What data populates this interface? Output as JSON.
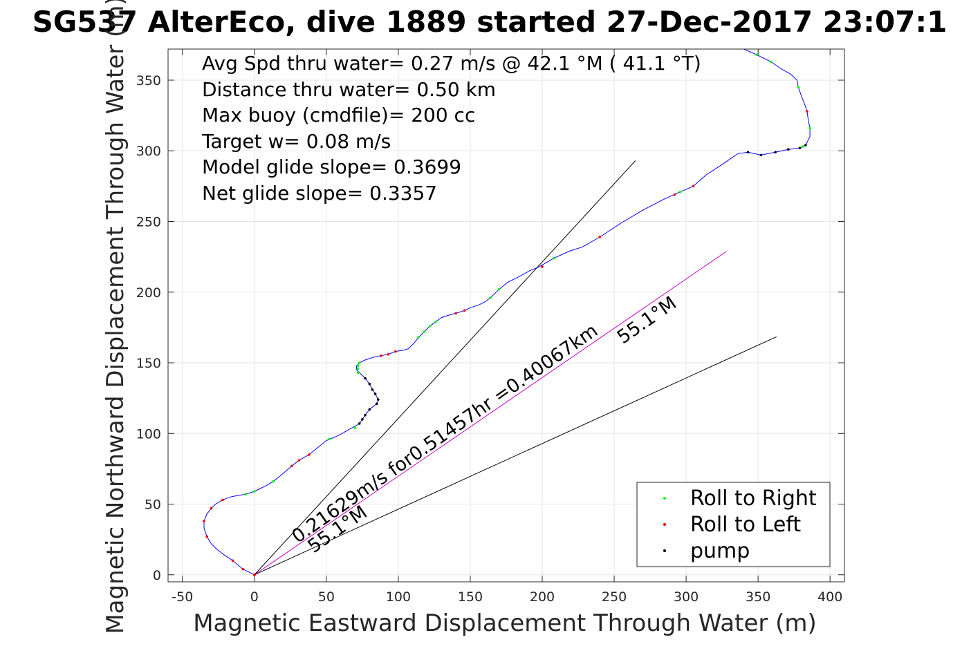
{
  "chart_data": {
    "type": "line",
    "title": "SG537 AlterEco, dive 1889 started 27-Dec-2017 23:07:1",
    "xlabel": "Magnetic Eastward Displacement Through Water (m)",
    "ylabel": "Magnetic Northward Displacement Through Water (m)",
    "xlim": [
      -60,
      410
    ],
    "ylim": [
      -5,
      372
    ],
    "xticks": [
      -50,
      0,
      50,
      100,
      150,
      200,
      250,
      300,
      350,
      400
    ],
    "yticks": [
      0,
      50,
      100,
      150,
      200,
      250,
      300,
      350
    ],
    "grid": true,
    "legend_position": "bottom-right",
    "annotations": [
      "Avg Spd thru water=  0.27 m/s @  42.1 °M ( 41.1 °T)",
      "Distance thru water=  0.50 km",
      "Max buoy (cmdfile)= 200 cc",
      "Target w= 0.08 m/s",
      "Model glide slope= 0.3699",
      "Net glide slope= 0.3357"
    ],
    "track": {
      "color": "#0000ff",
      "points": [
        [
          0,
          0
        ],
        [
          -8,
          4
        ],
        [
          -15,
          10
        ],
        [
          -21,
          14
        ],
        [
          -26,
          18
        ],
        [
          -30,
          22
        ],
        [
          -33,
          27
        ],
        [
          -35,
          33
        ],
        [
          -35,
          38
        ],
        [
          -33,
          43
        ],
        [
          -30,
          47
        ],
        [
          -27,
          50
        ],
        [
          -22,
          53
        ],
        [
          -17,
          55
        ],
        [
          -12,
          56
        ],
        [
          -6,
          57
        ],
        [
          0,
          59
        ],
        [
          4,
          61
        ],
        [
          8,
          63
        ],
        [
          13,
          66
        ],
        [
          18,
          70
        ],
        [
          26,
          77
        ],
        [
          31,
          81
        ],
        [
          38,
          85
        ],
        [
          44,
          90
        ],
        [
          50,
          95
        ],
        [
          57,
          98
        ],
        [
          61,
          100
        ],
        [
          66,
          103
        ],
        [
          70,
          105
        ],
        [
          73,
          107
        ],
        [
          75,
          110
        ],
        [
          77,
          113
        ],
        [
          80,
          117
        ],
        [
          85,
          121
        ],
        [
          86,
          124
        ],
        [
          84,
          128
        ],
        [
          82,
          131
        ],
        [
          80,
          135
        ],
        [
          77,
          139
        ],
        [
          74,
          142
        ],
        [
          71,
          145
        ],
        [
          71,
          148
        ],
        [
          73,
          150
        ],
        [
          77,
          152
        ],
        [
          83,
          154
        ],
        [
          88,
          155
        ],
        [
          93,
          156
        ],
        [
          98,
          158
        ],
        [
          104,
          159
        ],
        [
          107,
          160
        ],
        [
          111,
          164
        ],
        [
          114,
          168
        ],
        [
          118,
          172
        ],
        [
          122,
          176
        ],
        [
          126,
          179
        ],
        [
          130,
          182
        ],
        [
          136,
          184
        ],
        [
          140,
          185
        ],
        [
          146,
          187
        ],
        [
          150,
          189
        ],
        [
          156,
          191
        ],
        [
          160,
          193
        ],
        [
          164,
          196
        ],
        [
          170,
          202
        ],
        [
          176,
          207
        ],
        [
          184,
          211
        ],
        [
          191,
          215
        ],
        [
          198,
          218
        ],
        [
          208,
          224
        ],
        [
          219,
          229
        ],
        [
          228,
          232
        ],
        [
          240,
          239
        ],
        [
          255,
          249
        ],
        [
          270,
          258
        ],
        [
          285,
          266
        ],
        [
          296,
          271
        ],
        [
          305,
          275
        ],
        [
          314,
          283
        ],
        [
          326,
          291
        ],
        [
          336,
          298
        ],
        [
          343,
          299
        ],
        [
          352,
          297
        ],
        [
          362,
          299
        ],
        [
          371,
          301
        ],
        [
          379,
          302
        ],
        [
          383,
          304
        ],
        [
          386,
          310
        ],
        [
          386,
          316
        ],
        [
          385,
          321
        ],
        [
          384,
          328
        ],
        [
          382,
          334
        ],
        [
          380,
          339
        ],
        [
          378,
          345
        ],
        [
          377,
          350
        ],
        [
          373,
          354
        ],
        [
          366,
          358
        ],
        [
          359,
          363
        ],
        [
          349,
          368
        ],
        [
          340,
          372
        ]
      ]
    },
    "markers": {
      "roll_to_right": {
        "color": "#00ff00",
        "points": [
          [
            -6,
            57
          ],
          [
            0,
            59
          ],
          [
            13,
            66
          ],
          [
            52,
            96
          ],
          [
            70,
            104
          ],
          [
            72,
            143
          ],
          [
            72,
            146
          ],
          [
            72,
            148
          ],
          [
            73,
            150
          ],
          [
            114,
            168
          ],
          [
            118,
            172
          ],
          [
            122,
            176
          ],
          [
            126,
            179
          ],
          [
            164,
            196
          ],
          [
            170,
            202
          ],
          [
            208,
            224
          ],
          [
            296,
            271
          ],
          [
            378,
            345
          ],
          [
            386,
            316
          ],
          [
            381,
            303
          ],
          [
            359,
            363
          ],
          [
            349,
            368
          ]
        ]
      },
      "roll_to_left": {
        "color": "#ff0000",
        "points": [
          [
            -8,
            4
          ],
          [
            -15,
            10
          ],
          [
            -33,
            27
          ],
          [
            -35,
            38
          ],
          [
            -30,
            47
          ],
          [
            -22,
            53
          ],
          [
            26,
            77
          ],
          [
            31,
            81
          ],
          [
            38,
            85
          ],
          [
            88,
            155
          ],
          [
            93,
            156
          ],
          [
            98,
            158
          ],
          [
            140,
            185
          ],
          [
            146,
            187
          ],
          [
            200,
            218
          ],
          [
            240,
            239
          ],
          [
            292,
            269
          ],
          [
            305,
            275
          ],
          [
            384,
            328
          ]
        ]
      },
      "pump": {
        "color": "#000000",
        "points": [
          [
            73,
            107
          ],
          [
            75,
            110
          ],
          [
            77,
            113
          ],
          [
            80,
            117
          ],
          [
            85,
            121
          ],
          [
            86,
            124
          ],
          [
            84,
            128
          ],
          [
            82,
            131
          ],
          [
            80,
            135
          ],
          [
            77,
            139
          ],
          [
            343,
            299
          ],
          [
            352,
            297
          ],
          [
            362,
            299
          ],
          [
            371,
            301
          ],
          [
            379,
            302
          ],
          [
            383,
            304
          ]
        ]
      }
    },
    "heading_lines": [
      {
        "angle_deg": 42.1,
        "length": 395,
        "label": "",
        "color": "#000000"
      },
      {
        "angle_deg": 55.1,
        "length": 400,
        "label": "55.1°M",
        "color": "#c800c8"
      },
      {
        "angle_deg": 65.1,
        "length": 400,
        "label": "",
        "color": "#000000"
      }
    ],
    "rotated_labels": [
      {
        "text": "0.21629m/s for0.51457hr =0.40067km",
        "anchor": [
          30,
          22
        ],
        "angle_deg": 34.9
      },
      {
        "text": "55.1°M",
        "anchor": [
          256,
          163
        ],
        "angle_deg": 34.9
      },
      {
        "text": "55.1°M",
        "anchor": [
          41,
          15
        ],
        "angle_deg": 34.9
      }
    ],
    "series": [
      {
        "name": "Roll to Right",
        "color": "#00ff00",
        "marker": "dot"
      },
      {
        "name": "Roll to Left",
        "color": "#ff0000",
        "marker": "dot"
      },
      {
        "name": "pump",
        "color": "#000000",
        "marker": "dot"
      }
    ]
  }
}
